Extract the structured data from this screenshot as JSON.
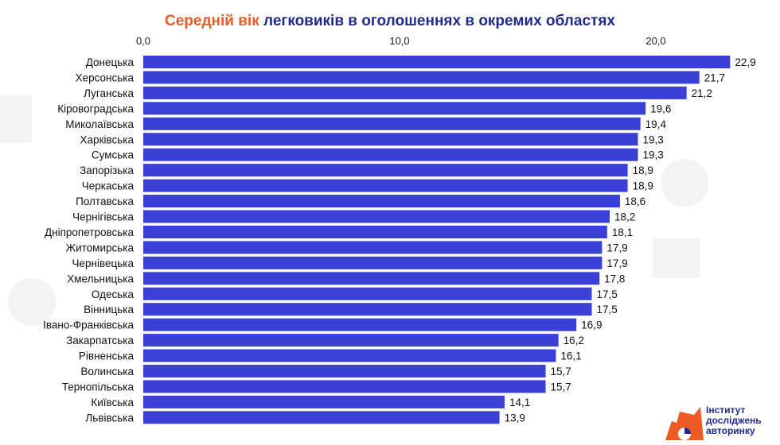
{
  "title": {
    "accent": "Середній вік",
    "rest": " легковиків в оголошеннях в окремих областях"
  },
  "logo": {
    "line1": "Інститут",
    "line2": "досліджень",
    "line3": "авторинку"
  },
  "colors": {
    "bar": "#3a3fd6",
    "title_main": "#1f2a8c",
    "title_accent": "#ee5a24",
    "logo_orange": "#ee5a24",
    "logo_blue": "#1f2a8c"
  },
  "chart_data": {
    "type": "bar",
    "orientation": "horizontal",
    "title": "Середній вік легковиків в оголошеннях в окремих областях",
    "xlim": [
      0,
      23
    ],
    "ticks": [
      0,
      10,
      20
    ],
    "tick_labels": [
      "0,0",
      "10,0",
      "20,0"
    ],
    "axis_position": "top",
    "grid": false,
    "categories": [
      "Донецька",
      "Херсонська",
      "Луганська",
      "Кіровоградська",
      "Миколаївська",
      "Харківська",
      "Сумська",
      "Запорізька",
      "Черкаська",
      "Полтавська",
      "Чернігівська",
      "Дніпропетровська",
      "Житомирська",
      "Чернівецька",
      "Хмельницька",
      "Одеська",
      "Вінницька",
      "Івано-Франківська",
      "Закарпатська",
      "Рівненська",
      "Волинська",
      "Тернопільська",
      "Київська",
      "Львівська"
    ],
    "values": [
      22.9,
      21.7,
      21.2,
      19.6,
      19.4,
      19.3,
      19.3,
      18.9,
      18.9,
      18.6,
      18.2,
      18.1,
      17.9,
      17.9,
      17.8,
      17.5,
      17.5,
      16.9,
      16.2,
      16.1,
      15.7,
      15.7,
      14.1,
      13.9
    ],
    "value_labels": [
      "22,9",
      "21,7",
      "21,2",
      "19,6",
      "19,4",
      "19,3",
      "19,3",
      "18,9",
      "18,9",
      "18,6",
      "18,2",
      "18,1",
      "17,9",
      "17,9",
      "17,8",
      "17,5",
      "17,5",
      "16,9",
      "16,2",
      "16,1",
      "15,7",
      "15,7",
      "14,1",
      "13,9"
    ]
  }
}
